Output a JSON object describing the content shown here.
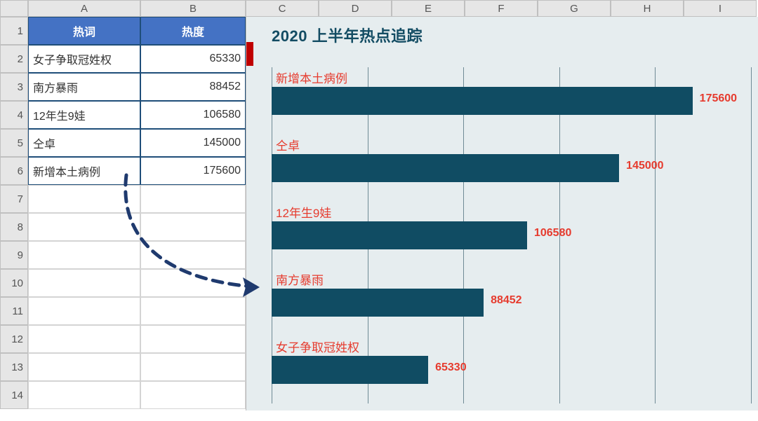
{
  "grid": {
    "columns": [
      "A",
      "B",
      "C",
      "D",
      "E",
      "F",
      "G",
      "H",
      "I"
    ],
    "row_count": 14
  },
  "table": {
    "header_bg": "#4472c4",
    "header_fg": "#ffffff",
    "border_color": "#1f4e79",
    "col_word": "热词",
    "col_heat": "热度",
    "rows": [
      {
        "word": "女子争取冠姓权",
        "heat": 65330
      },
      {
        "word": "南方暴雨",
        "heat": 88452
      },
      {
        "word": "12年生9娃",
        "heat": 106580
      },
      {
        "word": "仝卓",
        "heat": 145000
      },
      {
        "word": "新增本土病例",
        "heat": 175600
      }
    ]
  },
  "chart": {
    "type": "bar-horizontal",
    "background_color": "#e6edef",
    "title_prefix": "2020",
    "title_rest": " 上半年热点追踪",
    "title_color": "#134c63",
    "title_fontsize": 22,
    "accent_tab_color": "#c00000",
    "bar_color": "#104c63",
    "label_color": "#e63b2e",
    "value_color": "#e63b2e",
    "grid_color": "#6f8a95",
    "xmax": 200000,
    "xgrid_step": 40000,
    "bars": [
      {
        "label": "新增本土病例",
        "value": 175600
      },
      {
        "label": "仝卓",
        "value": 145000
      },
      {
        "label": "12年生9娃",
        "value": 106580
      },
      {
        "label": "南方暴雨",
        "value": 88452
      },
      {
        "label": "女子争取冠姓权",
        "value": 65330
      }
    ]
  },
  "arrow": {
    "stroke": "#1f3a6e",
    "dash": "14 10",
    "width": 5
  }
}
